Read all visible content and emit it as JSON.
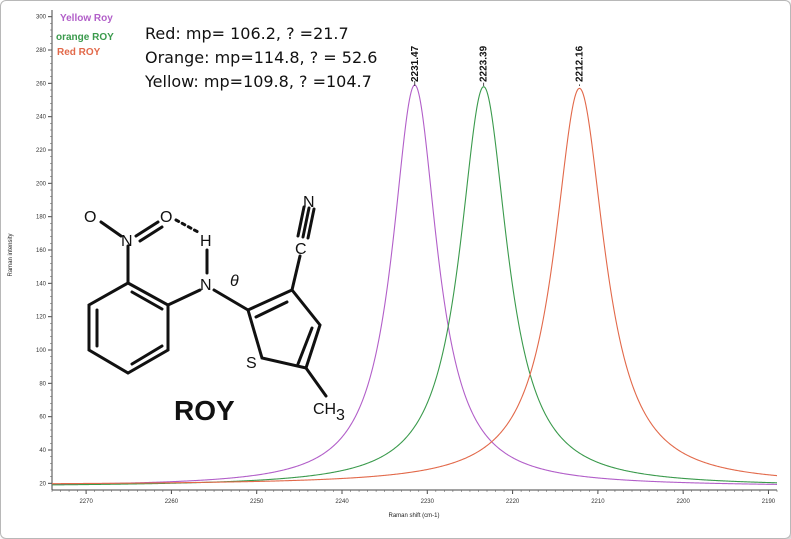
{
  "chart_data": {
    "type": "line",
    "title": "",
    "xlabel": "Raman shift (cm-1)",
    "ylabel": "Raman intensity",
    "xlim": [
      2274,
      2189
    ],
    "ylim": [
      16,
      304
    ],
    "x_reversed": true,
    "x_ticks": [
      2270,
      2260,
      2250,
      2240,
      2230,
      2220,
      2210,
      2200,
      2190
    ],
    "y_ticks": [
      20,
      40,
      60,
      80,
      100,
      120,
      140,
      160,
      180,
      200,
      220,
      240,
      260,
      280,
      300
    ],
    "grid": false,
    "legend": "top-left",
    "series": [
      {
        "name": "Yellow Roy",
        "color": "#b25fc9",
        "center": 2231.47,
        "amplitude": 241,
        "width": 3.2,
        "baseline": 18
      },
      {
        "name": "orange ROY",
        "color": "#3a9a4c",
        "center": 2223.39,
        "amplitude": 240,
        "width": 3.4,
        "baseline": 18
      },
      {
        "name": "Red ROY",
        "color": "#e2694a",
        "center": 2212.16,
        "amplitude": 238,
        "width": 3.6,
        "baseline": 19
      }
    ],
    "peak_labels": [
      {
        "x": 2231.47,
        "text": "2231.47"
      },
      {
        "x": 2223.39,
        "text": "2223.39"
      },
      {
        "x": 2212.16,
        "text": "2212.16"
      }
    ],
    "annotations": [
      "Red: mp= 106.2, ? =21.7",
      "Orange: mp=114.8, ? = 52.6",
      "Yellow: mp=109.8, ? =104.7"
    ]
  },
  "molecule": {
    "name": "ROY",
    "atoms": {
      "o1": "O",
      "o2": "O",
      "n_nitro": "N",
      "h": "H",
      "n_amine": "N",
      "theta": "θ",
      "nitrile_n": "N",
      "nitrile_c": "C",
      "s": "S",
      "methyl": "CH",
      "methyl_sub": "3"
    }
  }
}
